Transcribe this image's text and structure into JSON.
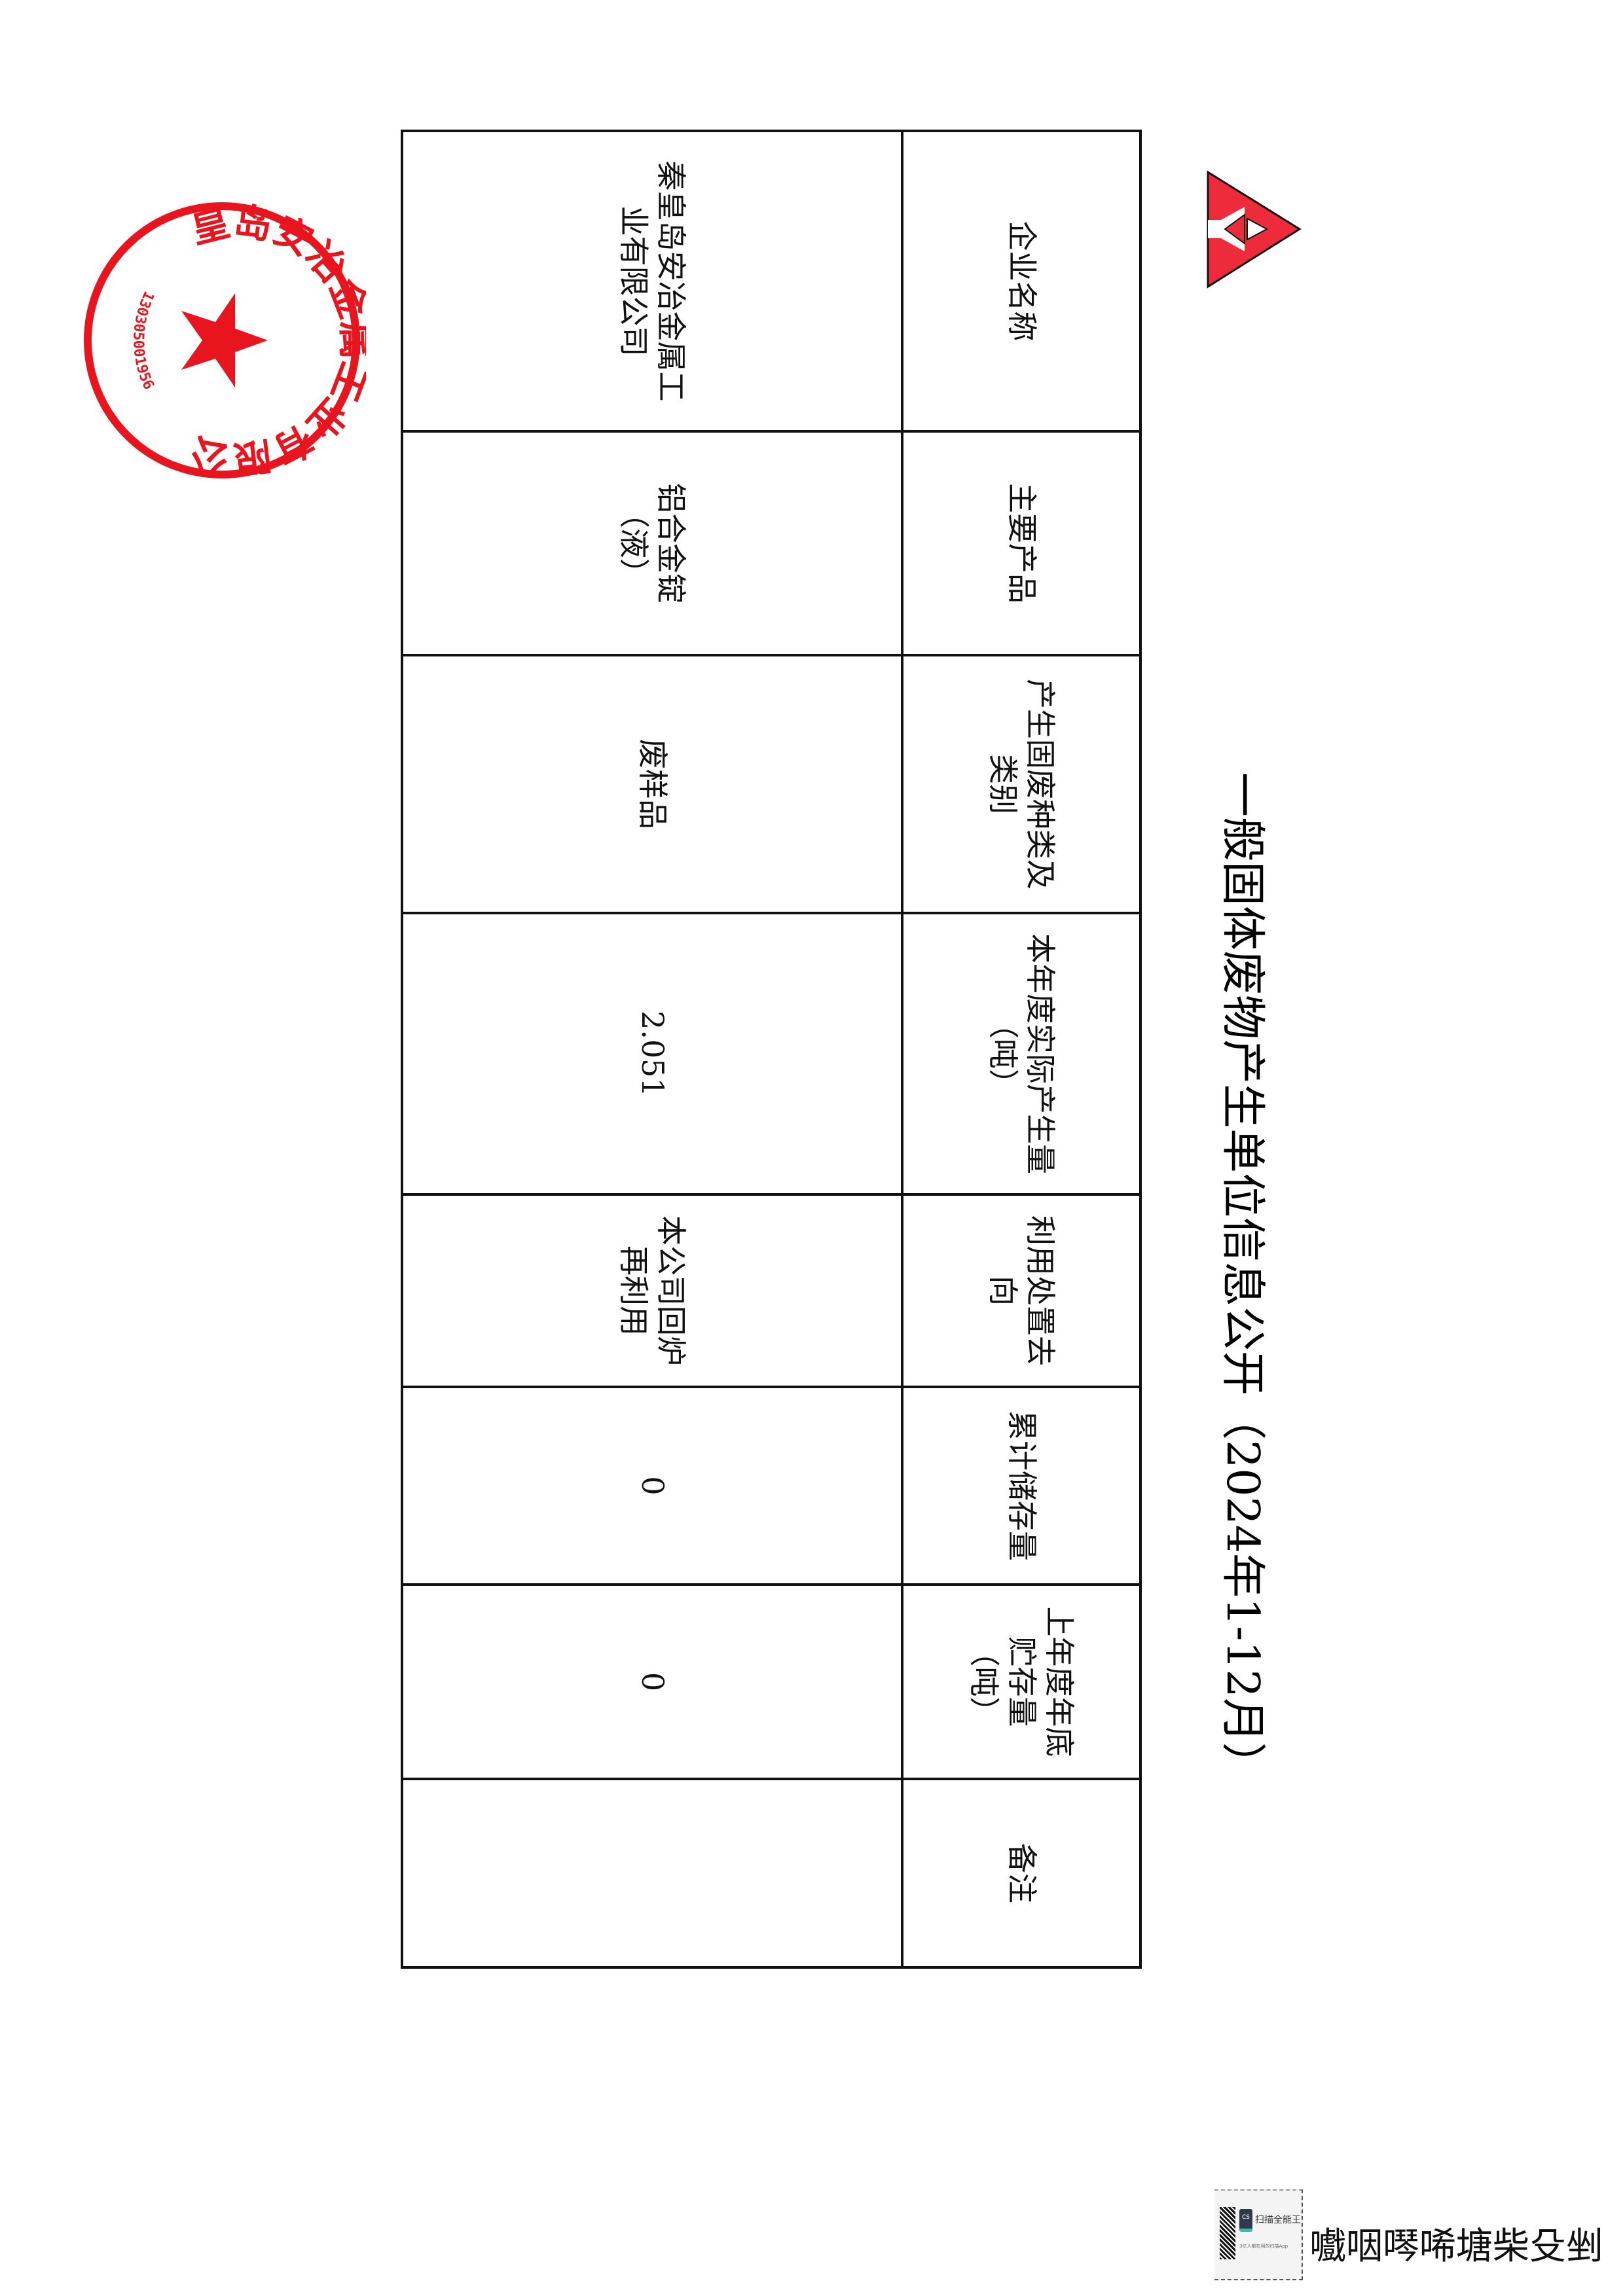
{
  "document": {
    "title": "一般固体废物产生单位信息公开（2024年1-12月）",
    "logo_color": "#ee2b3b",
    "table": {
      "headers": [
        "企业名称",
        "主要产品",
        "产生固废种类及类别",
        "本年度实际产生量（吨）",
        "利用处置去向",
        "累计储存量",
        "上年度年底贮存量（吨）",
        "备注"
      ],
      "rows": [
        [
          "秦皇岛安冶金属工业有限公司",
          "铝合金锭（液）",
          "废样品",
          "2.051",
          "本公司回炉再利用",
          "0",
          "0",
          ""
        ]
      ]
    },
    "stamp": {
      "text": "秦皇岛安冶金属工业有限公司",
      "number": "130305001956",
      "color": "#e8141e"
    }
  },
  "footer": {
    "app_name": "扫描全能王",
    "app_badge": "CS",
    "app_tagline": "3亿人都在用的扫描App",
    "garbled_text": "嚱咽噖唏塘柴殳剉"
  }
}
